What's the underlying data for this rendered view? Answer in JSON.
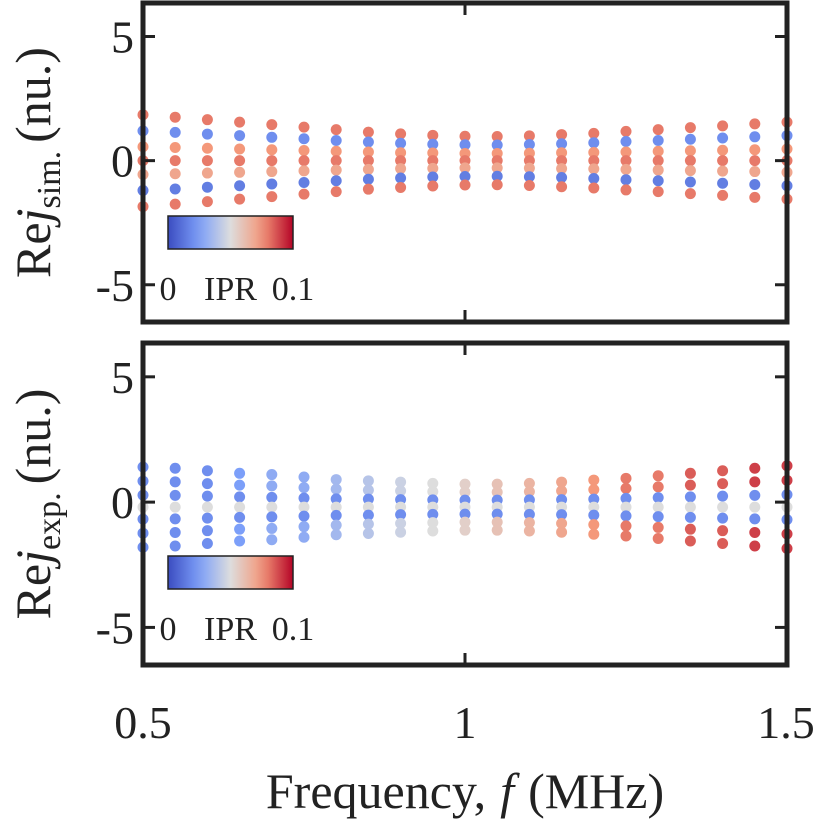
{
  "chart_data": [
    {
      "type": "scatter",
      "ylabel": {
        "text": "Re",
        "var": "j",
        "sub": "sim.",
        "unit": "(nu.)"
      },
      "xlim": [
        0.5,
        1.5
      ],
      "ylim": [
        -6.5,
        6.35
      ],
      "xticks": [
        0.5,
        1,
        1.5
      ],
      "yticks": [
        5,
        0,
        -5
      ],
      "colorbar": {
        "label": "IPR",
        "clim": [
          0,
          0.1
        ],
        "ticks": [
          0,
          0.1
        ]
      },
      "x": [
        0.5,
        0.55,
        0.6,
        0.65,
        0.7,
        0.75,
        0.8,
        0.85,
        0.9,
        0.95,
        1,
        1.05,
        1.1,
        1.15,
        1.2,
        1.25,
        1.3,
        1.35,
        1.4,
        1.45,
        1.5
      ],
      "series": [
        {
          "ipr": 0.08,
          "values": [
            1.85,
            1.75,
            1.65,
            1.55,
            1.45,
            1.35,
            1.25,
            1.15,
            1.08,
            1.02,
            0.98,
            0.97,
            1.0,
            1.05,
            1.1,
            1.18,
            1.25,
            1.33,
            1.4,
            1.48,
            1.55
          ]
        },
        {
          "ipr": 0.02,
          "values": [
            1.2,
            1.14,
            1.07,
            1.01,
            0.94,
            0.88,
            0.81,
            0.75,
            0.7,
            0.66,
            0.64,
            0.63,
            0.65,
            0.68,
            0.72,
            0.77,
            0.81,
            0.86,
            0.91,
            0.96,
            1.01
          ]
        },
        {
          "ipr": 0.075,
          "values": [
            0.56,
            0.53,
            0.5,
            0.47,
            0.44,
            0.41,
            0.38,
            0.35,
            0.32,
            0.31,
            0.29,
            0.29,
            0.3,
            0.32,
            0.33,
            0.35,
            0.38,
            0.4,
            0.42,
            0.44,
            0.47
          ]
        },
        {
          "ipr": 0.08,
          "values": [
            0,
            0,
            0,
            0,
            0,
            0,
            0,
            0,
            0,
            0,
            0,
            0,
            0,
            0,
            0,
            0,
            0,
            0,
            0,
            0,
            0
          ]
        },
        {
          "ipr": 0.07,
          "values": [
            -0.56,
            -0.53,
            -0.5,
            -0.47,
            -0.44,
            -0.41,
            -0.38,
            -0.35,
            -0.32,
            -0.31,
            -0.29,
            -0.29,
            -0.3,
            -0.32,
            -0.33,
            -0.35,
            -0.38,
            -0.4,
            -0.42,
            -0.44,
            -0.47
          ]
        },
        {
          "ipr": 0.015,
          "values": [
            -1.2,
            -1.14,
            -1.07,
            -1.01,
            -0.94,
            -0.88,
            -0.81,
            -0.75,
            -0.7,
            -0.66,
            -0.64,
            -0.63,
            -0.65,
            -0.68,
            -0.72,
            -0.77,
            -0.81,
            -0.86,
            -0.91,
            -0.96,
            -1.01
          ]
        },
        {
          "ipr": 0.08,
          "values": [
            -1.85,
            -1.75,
            -1.65,
            -1.55,
            -1.45,
            -1.35,
            -1.25,
            -1.15,
            -1.08,
            -1.02,
            -0.98,
            -0.97,
            -1.0,
            -1.05,
            -1.1,
            -1.18,
            -1.25,
            -1.33,
            -1.4,
            -1.48,
            -1.55
          ]
        }
      ]
    },
    {
      "type": "scatter",
      "ylabel": {
        "text": "Re",
        "var": "j",
        "sub": "exp.",
        "unit": "(nu.)"
      },
      "xlabel": [
        "Frequency,",
        "f",
        "(MHz)"
      ],
      "xlim": [
        0.5,
        1.5
      ],
      "ylim": [
        -6.5,
        6.35
      ],
      "xticks": [
        0.5,
        1,
        1.5
      ],
      "yticks": [
        5,
        0,
        -5
      ],
      "colorbar": {
        "label": "IPR",
        "clim": [
          0,
          0.1
        ],
        "ticks": [
          0,
          0.1
        ]
      },
      "x": [
        0.5,
        0.55,
        0.6,
        0.65,
        0.7,
        0.75,
        0.8,
        0.85,
        0.9,
        0.95,
        1,
        1.05,
        1.1,
        1.15,
        1.2,
        1.25,
        1.3,
        1.35,
        1.4,
        1.45,
        1.5
      ],
      "series": [
        {
          "ipr": [
            0.02,
            0.02,
            0.02,
            0.025,
            0.03,
            0.03,
            0.035,
            0.04,
            0.045,
            0.05,
            0.055,
            0.06,
            0.065,
            0.07,
            0.075,
            0.08,
            0.08,
            0.085,
            0.085,
            0.09,
            0.09
          ],
          "values": [
            1.4,
            1.35,
            1.25,
            1.15,
            1.1,
            1.0,
            0.9,
            0.85,
            0.8,
            0.75,
            0.72,
            0.72,
            0.75,
            0.8,
            0.88,
            0.95,
            1.05,
            1.15,
            1.25,
            1.35,
            1.45
          ]
        },
        {
          "ipr": [
            0.02,
            0.02,
            0.02,
            0.025,
            0.03,
            0.03,
            0.035,
            0.04,
            0.045,
            0.05,
            0.055,
            0.06,
            0.065,
            0.07,
            0.075,
            0.08,
            0.08,
            0.085,
            0.085,
            0.09,
            0.09
          ],
          "values": [
            0.84,
            0.81,
            0.74,
            0.68,
            0.65,
            0.58,
            0.52,
            0.48,
            0.45,
            0.42,
            0.4,
            0.4,
            0.42,
            0.45,
            0.5,
            0.55,
            0.61,
            0.68,
            0.74,
            0.81,
            0.87
          ]
        },
        {
          "ipr": 0.02,
          "values": [
            0.28,
            0.27,
            0.24,
            0.21,
            0.19,
            0.16,
            0.13,
            0.12,
            0.1,
            0.09,
            0.08,
            0.08,
            0.09,
            0.1,
            0.12,
            0.15,
            0.18,
            0.21,
            0.24,
            0.27,
            0.3
          ]
        },
        {
          "ipr": 0.05,
          "values": [
            -0.2,
            -0.2,
            -0.2,
            -0.2,
            -0.2,
            -0.2,
            -0.2,
            -0.2,
            -0.2,
            -0.2,
            -0.2,
            -0.2,
            -0.2,
            -0.2,
            -0.2,
            -0.2,
            -0.2,
            -0.2,
            -0.2,
            -0.2,
            -0.2
          ]
        },
        {
          "ipr": 0.02,
          "values": [
            -0.68,
            -0.67,
            -0.64,
            -0.61,
            -0.59,
            -0.56,
            -0.53,
            -0.52,
            -0.5,
            -0.49,
            -0.48,
            -0.48,
            -0.49,
            -0.5,
            -0.52,
            -0.55,
            -0.58,
            -0.61,
            -0.64,
            -0.67,
            -0.7
          ]
        },
        {
          "ipr": [
            0.02,
            0.02,
            0.02,
            0.025,
            0.03,
            0.03,
            0.035,
            0.04,
            0.045,
            0.05,
            0.055,
            0.06,
            0.065,
            0.07,
            0.075,
            0.08,
            0.08,
            0.085,
            0.085,
            0.09,
            0.09
          ],
          "values": [
            -1.24,
            -1.21,
            -1.14,
            -1.08,
            -1.05,
            -0.98,
            -0.92,
            -0.88,
            -0.85,
            -0.82,
            -0.8,
            -0.8,
            -0.82,
            -0.85,
            -0.9,
            -0.95,
            -1.01,
            -1.08,
            -1.14,
            -1.21,
            -1.27
          ]
        },
        {
          "ipr": [
            0.02,
            0.02,
            0.02,
            0.025,
            0.03,
            0.03,
            0.035,
            0.04,
            0.045,
            0.05,
            0.055,
            0.06,
            0.065,
            0.07,
            0.075,
            0.08,
            0.08,
            0.085,
            0.085,
            0.09,
            0.09
          ],
          "values": [
            -1.8,
            -1.75,
            -1.65,
            -1.55,
            -1.5,
            -1.4,
            -1.3,
            -1.25,
            -1.2,
            -1.15,
            -1.12,
            -1.12,
            -1.15,
            -1.2,
            -1.28,
            -1.35,
            -1.45,
            -1.55,
            -1.65,
            -1.75,
            -1.85
          ]
        }
      ]
    }
  ]
}
